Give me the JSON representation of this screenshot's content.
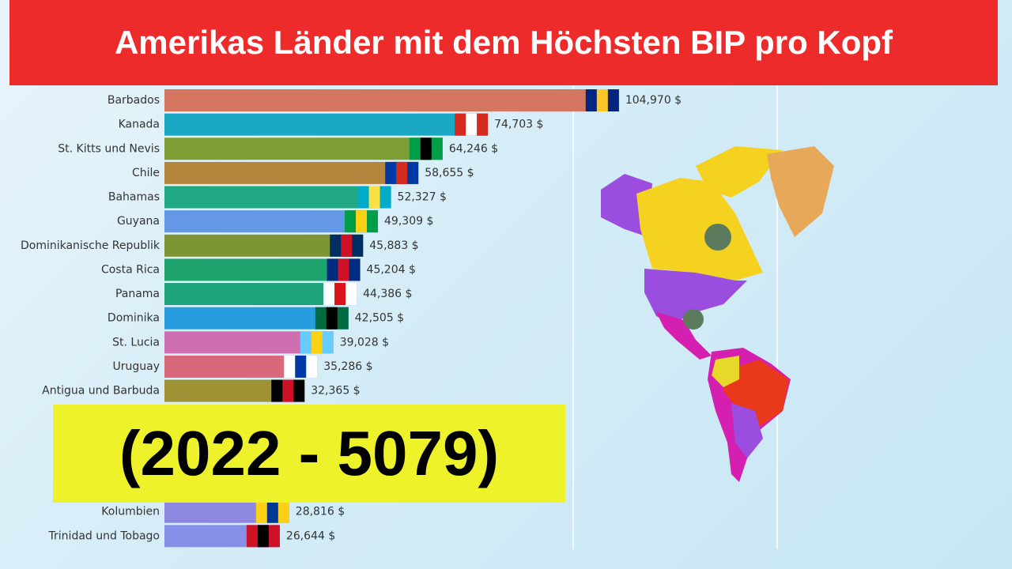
{
  "header": {
    "title": "Amerikas Länder mit dem Höchsten BIP pro Kopf"
  },
  "overlay": {
    "text": "(2022 - 5079)"
  },
  "chart_data": {
    "type": "bar",
    "orientation": "horizontal",
    "categories": [
      "Barbados",
      "Kanada",
      "St. Kitts und Nevis",
      "Chile",
      "Bahamas",
      "Guyana",
      "Dominikanische Republik",
      "Costa Rica",
      "Panama",
      "Dominika",
      "St. Lucia",
      "Uruguay",
      "Antigua und Barbuda",
      "Kolumbien",
      "Trinidad und Tobago"
    ],
    "values": [
      104970,
      74703,
      64246,
      58655,
      52327,
      49309,
      45883,
      45204,
      44386,
      42505,
      39028,
      35286,
      32365,
      28816,
      26644
    ],
    "value_labels": [
      "104,970 $",
      "74,703 $",
      "64,246 $",
      "58,655 $",
      "52,327 $",
      "49,309 $",
      "45,883 $",
      "45,204 $",
      "44,386 $",
      "42,505 $",
      "39,028 $",
      "35,286 $",
      "32,365 $",
      "28,816 $",
      "26,644 $"
    ],
    "colors": [
      "#d47660",
      "#1ba8c4",
      "#7f9d35",
      "#b5873e",
      "#20a882",
      "#6497e6",
      "#7e9536",
      "#1ea36f",
      "#1ea37a",
      "#279de0",
      "#cf6eb1",
      "#d9687a",
      "#9e9235",
      "#8e88e0",
      "#8690e8"
    ],
    "xlim": [
      0,
      105000
    ]
  }
}
